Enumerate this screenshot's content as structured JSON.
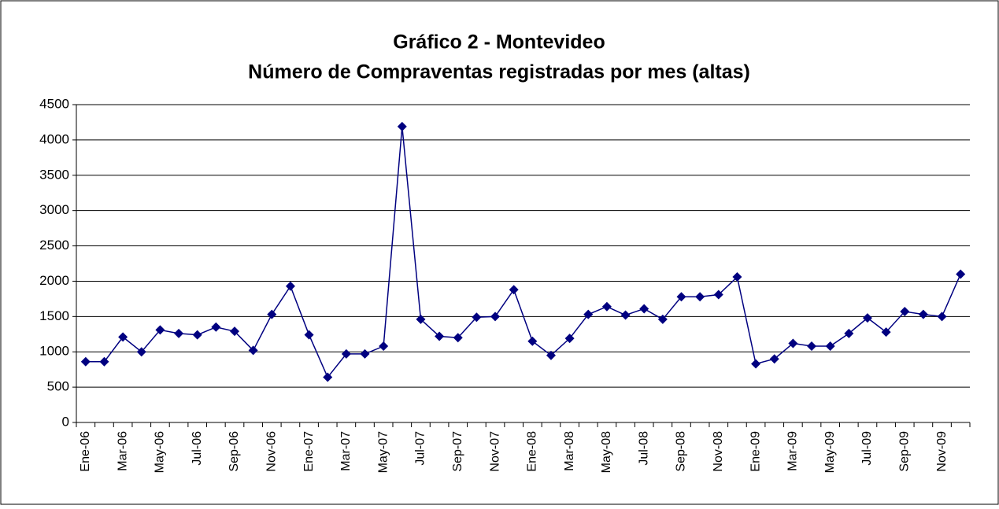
{
  "chart_data": {
    "type": "line",
    "title": [
      "Gráfico 2 - Montevideo",
      "Número de Compraventas registradas por mes (altas)"
    ],
    "categories": [
      "Ene-06",
      null,
      "Mar-06",
      null,
      "May-06",
      null,
      "Jul-06",
      null,
      "Sep-06",
      null,
      "Nov-06",
      null,
      "Ene-07",
      null,
      "Mar-07",
      null,
      "May-07",
      null,
      "Jul-07",
      null,
      "Sep-07",
      null,
      "Nov-07",
      null,
      "Ene-08",
      null,
      "Mar-08",
      null,
      "May-08",
      null,
      "Jul-08",
      null,
      "Sep-08",
      null,
      "Nov-08",
      null,
      "Ene-09",
      null,
      "Mar-09",
      null,
      "May-09",
      null,
      "Jul-09",
      null,
      "Sep-09",
      null,
      "Nov-09",
      null
    ],
    "series": [
      {
        "color": "#000080",
        "values": [
          860,
          860,
          1210,
          1000,
          1310,
          1260,
          1240,
          1350,
          1290,
          1020,
          1530,
          1930,
          1240,
          640,
          970,
          970,
          1080,
          4190,
          1460,
          1220,
          1200,
          1490,
          1500,
          1880,
          1150,
          950,
          1190,
          1530,
          1640,
          1520,
          1610,
          1460,
          1780,
          1780,
          1810,
          2060,
          830,
          900,
          1120,
          1080,
          1080,
          1260,
          1480,
          1280,
          1570,
          1530,
          1500,
          2100
        ]
      }
    ],
    "ylim": [
      0,
      4500
    ],
    "yticks": [
      0,
      500,
      1000,
      1500,
      2000,
      2500,
      3000,
      3500,
      4000,
      4500
    ],
    "grid": true
  }
}
